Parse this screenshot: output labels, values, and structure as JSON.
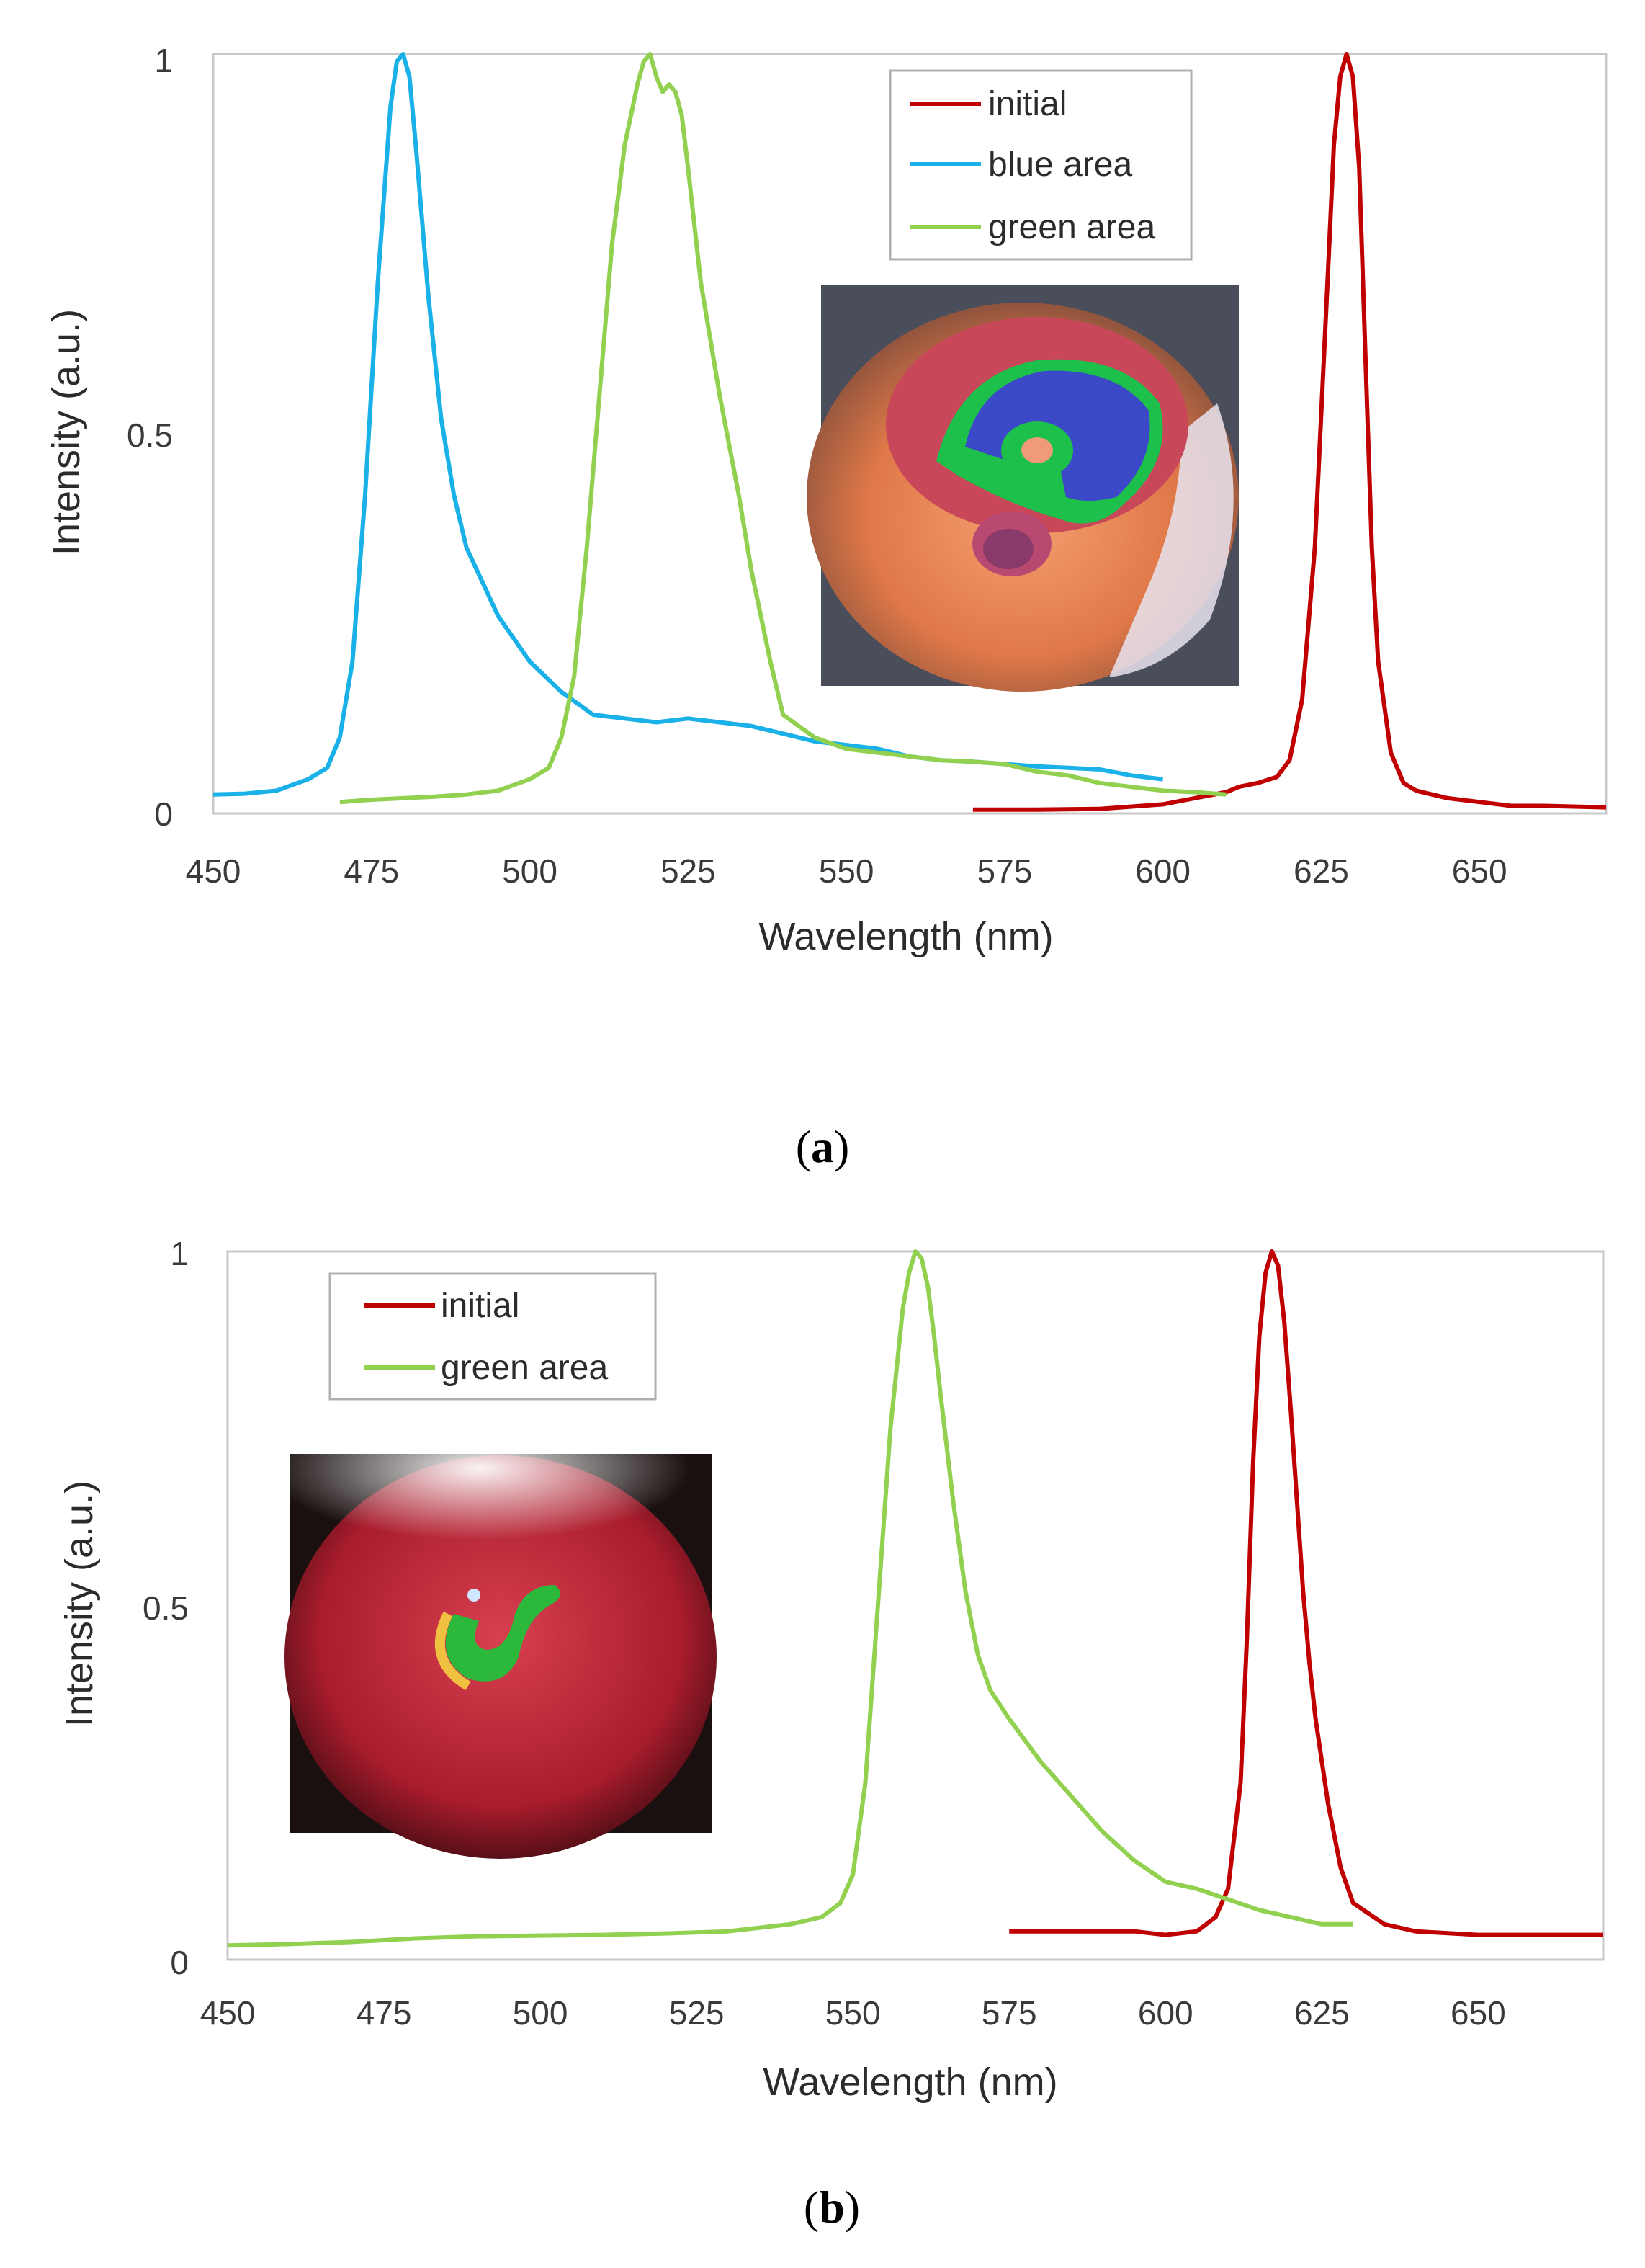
{
  "chart_data": [
    {
      "type": "line",
      "panel": "a",
      "caption_open": "(",
      "caption_letter": "a",
      "caption_close": ")",
      "xlabel": "Wavelength (nm)",
      "ylabel": "Intensity (a.u.)",
      "xlim": [
        450,
        670
      ],
      "ylim": [
        0,
        1
      ],
      "xticks": [
        "450",
        "475",
        "500",
        "525",
        "550",
        "575",
        "600",
        "625",
        "650"
      ],
      "yticks": [
        "0",
        "0.5",
        "1"
      ],
      "legend_position": "top-center",
      "inset_image": "photo of sample disc with red outer ring, green and blue central areas",
      "series": [
        {
          "name": "initial",
          "color": "#c00000",
          "x": [
            570,
            580,
            590,
            600,
            605,
            610,
            612,
            615,
            618,
            620,
            622,
            624,
            626,
            627,
            628,
            629,
            630,
            631,
            632,
            633,
            634,
            636,
            638,
            640,
            645,
            650,
            655,
            660,
            670
          ],
          "y": [
            0.005,
            0.005,
            0.006,
            0.012,
            0.02,
            0.028,
            0.035,
            0.04,
            0.048,
            0.07,
            0.15,
            0.35,
            0.7,
            0.88,
            0.97,
            1.0,
            0.97,
            0.85,
            0.6,
            0.35,
            0.2,
            0.08,
            0.04,
            0.03,
            0.02,
            0.015,
            0.01,
            0.01,
            0.008
          ]
        },
        {
          "name": "blue area",
          "color": "#1ab0e8",
          "x": [
            450,
            455,
            460,
            465,
            468,
            470,
            472,
            474,
            476,
            478,
            479,
            480,
            481,
            482,
            484,
            486,
            488,
            490,
            495,
            500,
            505,
            510,
            515,
            520,
            525,
            530,
            535,
            540,
            545,
            550,
            555,
            560,
            565,
            570,
            575,
            580,
            585,
            590,
            595,
            600
          ],
          "y": [
            0.025,
            0.026,
            0.03,
            0.045,
            0.06,
            0.1,
            0.2,
            0.42,
            0.7,
            0.93,
            0.99,
            1.0,
            0.97,
            0.88,
            0.68,
            0.52,
            0.42,
            0.35,
            0.26,
            0.2,
            0.16,
            0.13,
            0.125,
            0.12,
            0.125,
            0.12,
            0.115,
            0.105,
            0.095,
            0.09,
            0.085,
            0.075,
            0.07,
            0.068,
            0.065,
            0.062,
            0.06,
            0.058,
            0.05,
            0.045
          ]
        },
        {
          "name": "green area",
          "color": "#92d050",
          "x": [
            470,
            475,
            480,
            485,
            490,
            495,
            500,
            503,
            505,
            507,
            509,
            511,
            513,
            515,
            517,
            518,
            519,
            520,
            521,
            522,
            523,
            524,
            525,
            527,
            530,
            533,
            535,
            538,
            540,
            545,
            550,
            555,
            560,
            565,
            570,
            575,
            580,
            585,
            590,
            595,
            600,
            605,
            610
          ],
          "y": [
            0.015,
            0.018,
            0.02,
            0.022,
            0.025,
            0.03,
            0.045,
            0.06,
            0.1,
            0.18,
            0.35,
            0.55,
            0.75,
            0.88,
            0.96,
            0.99,
            1.0,
            0.97,
            0.95,
            0.96,
            0.95,
            0.92,
            0.85,
            0.7,
            0.55,
            0.42,
            0.32,
            0.2,
            0.13,
            0.1,
            0.085,
            0.08,
            0.075,
            0.07,
            0.068,
            0.065,
            0.055,
            0.05,
            0.04,
            0.035,
            0.03,
            0.028,
            0.025
          ]
        }
      ]
    },
    {
      "type": "line",
      "panel": "b",
      "caption_open": "(",
      "caption_letter": "b",
      "caption_close": ")",
      "xlabel": "Wavelength (nm)",
      "ylabel": "Intensity (a.u.)",
      "xlim": [
        450,
        670
      ],
      "ylim": [
        0,
        1
      ],
      "xticks": [
        "450",
        "475",
        "500",
        "525",
        "550",
        "575",
        "600",
        "625",
        "650"
      ],
      "yticks": [
        "0",
        "0.5",
        "1"
      ],
      "legend_position": "top-left",
      "inset_image": "photo of red sample disc with green hook-shaped area",
      "series": [
        {
          "name": "initial",
          "color": "#c00000",
          "x": [
            575,
            585,
            595,
            600,
            605,
            608,
            610,
            612,
            613,
            614,
            615,
            616,
            617,
            618,
            619,
            620,
            621,
            622,
            623,
            624,
            626,
            628,
            630,
            635,
            640,
            650,
            660,
            670
          ],
          "y": [
            0.04,
            0.04,
            0.04,
            0.035,
            0.04,
            0.06,
            0.1,
            0.25,
            0.45,
            0.7,
            0.88,
            0.97,
            1.0,
            0.98,
            0.9,
            0.78,
            0.65,
            0.52,
            0.42,
            0.34,
            0.22,
            0.13,
            0.08,
            0.05,
            0.04,
            0.035,
            0.035,
            0.035
          ]
        },
        {
          "name": "green area",
          "color": "#92d050",
          "x": [
            450,
            460,
            470,
            480,
            490,
            500,
            510,
            520,
            530,
            540,
            545,
            548,
            550,
            552,
            554,
            556,
            558,
            559,
            560,
            561,
            562,
            563,
            564,
            566,
            568,
            570,
            572,
            575,
            580,
            585,
            590,
            595,
            600,
            605,
            610,
            615,
            620,
            625,
            630
          ],
          "y": [
            0.02,
            0.022,
            0.025,
            0.03,
            0.033,
            0.034,
            0.035,
            0.037,
            0.04,
            0.05,
            0.06,
            0.08,
            0.12,
            0.25,
            0.5,
            0.75,
            0.92,
            0.97,
            1.0,
            0.99,
            0.95,
            0.88,
            0.8,
            0.65,
            0.52,
            0.43,
            0.38,
            0.34,
            0.28,
            0.23,
            0.18,
            0.14,
            0.11,
            0.1,
            0.085,
            0.07,
            0.06,
            0.05,
            0.05
          ]
        }
      ]
    }
  ]
}
